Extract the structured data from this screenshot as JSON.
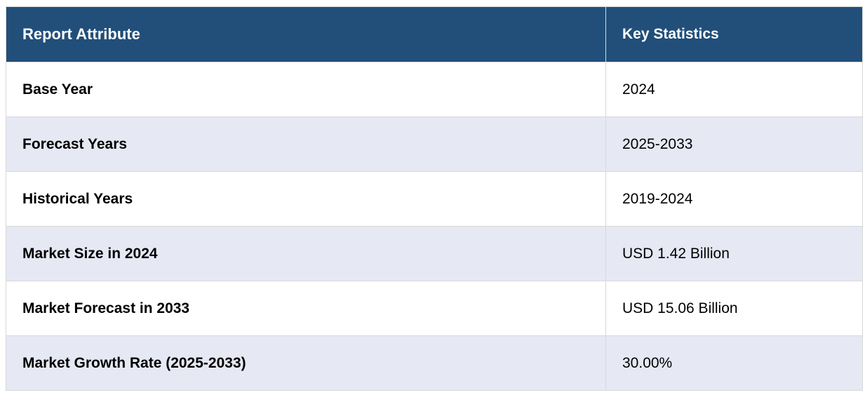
{
  "table": {
    "header": [
      "Report Attribute",
      "Key Statistics"
    ],
    "rows": [
      [
        "Base Year",
        "2024"
      ],
      [
        "Forecast Years",
        "2025-2033"
      ],
      [
        "Historical Years",
        "2019-2024"
      ],
      [
        "Market Size in 2024",
        "USD 1.42 Billion"
      ],
      [
        "Market Forecast in 2033",
        "USD 15.06 Billion"
      ],
      [
        "Market Growth Rate (2025-2033)",
        "30.00%"
      ]
    ]
  }
}
